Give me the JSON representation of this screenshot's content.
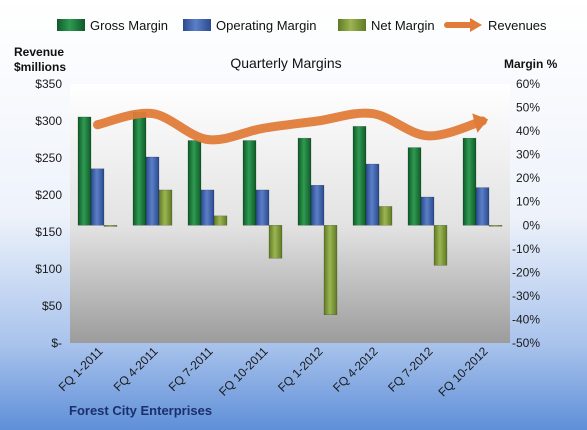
{
  "chart_data": {
    "type": "bar",
    "title": "Quarterly Margins",
    "company": "Forest City Enterprises",
    "y_left_label_line1": "Revenue",
    "y_left_label_line2": "$millions",
    "y_right_label": "Margin %",
    "categories": [
      "FQ 1-2011",
      "FQ 4-2011",
      "FQ 7-2011",
      "FQ 10-2011",
      "FQ 1-2012",
      "FQ 4-2012",
      "FQ 7-2012",
      "FQ 10-2012"
    ],
    "series": [
      {
        "name": "Gross Margin",
        "axis": "right",
        "type": "bar",
        "color": "#1f7a3c",
        "values": [
          46,
          48,
          36,
          36,
          37,
          42,
          33,
          37
        ]
      },
      {
        "name": "Operating Margin",
        "axis": "right",
        "type": "bar",
        "color": "#3e63ad",
        "values": [
          24,
          29,
          15,
          15,
          17,
          26,
          12,
          16
        ]
      },
      {
        "name": "Net Margin",
        "axis": "right",
        "type": "bar",
        "color": "#7f9a3a",
        "values": [
          -0.5,
          15,
          4,
          -14,
          -38,
          8,
          -17,
          0
        ]
      },
      {
        "name": "Revenues",
        "axis": "left",
        "type": "line",
        "color": "#e07b39",
        "values": [
          295,
          310,
          275,
          290,
          300,
          310,
          280,
          300
        ]
      }
    ],
    "y_left": {
      "min": 0,
      "max": 350,
      "step": 50,
      "tick_labels": [
        "$-",
        "$50",
        "$100",
        "$150",
        "$200",
        "$250",
        "$300",
        "$350"
      ]
    },
    "y_right": {
      "min": -50,
      "max": 60,
      "step": 10,
      "tick_labels": [
        "-50%",
        "-40%",
        "-30%",
        "-20%",
        "-10%",
        "0%",
        "10%",
        "20%",
        "30%",
        "40%",
        "50%",
        "60%"
      ]
    },
    "legend_position": "top",
    "grid": false
  }
}
